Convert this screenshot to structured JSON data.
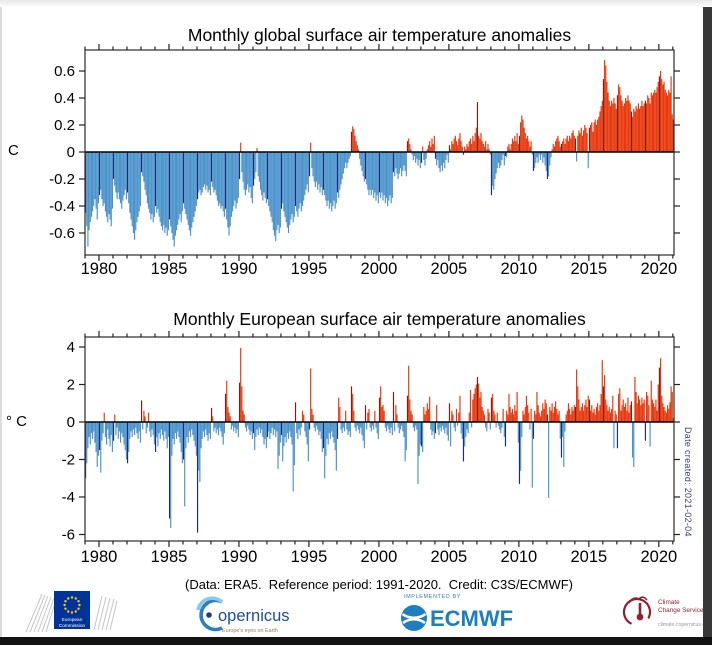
{
  "chart_data": [
    {
      "type": "bar",
      "title": "Monthly global surface air temperature anomalies",
      "ylabel": "C",
      "unit": "degC",
      "frequency": "monthly",
      "x_start_year": 1979,
      "x_end": "2021-01",
      "x_major_ticks": [
        1980,
        1985,
        1990,
        1995,
        2000,
        2005,
        2010,
        2015,
        2020
      ],
      "y_ticks": [
        0.6,
        0.4,
        0.2,
        0,
        -0.2,
        -0.4,
        -0.6
      ],
      "y_tick_labels": [
        "0.6",
        "0.4",
        "0.2",
        "0",
        "-0.2",
        "-0.4",
        "-0.6"
      ],
      "ylim": [
        -0.76,
        0.76
      ],
      "grid": false,
      "highlight_rule": "January values drawn in dark colours",
      "colors": {
        "positive": "#e8380d",
        "positive_january": "#8c1a0e",
        "negative": "#4b94cb",
        "negative_january": "#1b2c7e"
      },
      "values": [
        -0.45,
        -0.55,
        -0.7,
        -0.58,
        -0.52,
        -0.48,
        -0.44,
        -0.4,
        -0.35,
        -0.42,
        -0.5,
        -0.38,
        -0.32,
        -0.28,
        -0.35,
        -0.4,
        -0.38,
        -0.44,
        -0.48,
        -0.52,
        -0.46,
        -0.5,
        -0.55,
        -0.42,
        -0.2,
        -0.25,
        -0.3,
        -0.35,
        -0.3,
        -0.35,
        -0.38,
        -0.42,
        -0.36,
        -0.32,
        -0.28,
        -0.35,
        -0.3,
        -0.38,
        -0.45,
        -0.5,
        -0.55,
        -0.6,
        -0.65,
        -0.58,
        -0.52,
        -0.48,
        -0.44,
        -0.4,
        -0.15,
        -0.18,
        -0.22,
        -0.28,
        -0.32,
        -0.38,
        -0.42,
        -0.45,
        -0.5,
        -0.46,
        -0.52,
        -0.48,
        -0.4,
        -0.45,
        -0.42,
        -0.48,
        -0.52,
        -0.55,
        -0.58,
        -0.54,
        -0.6,
        -0.56,
        -0.62,
        -0.58,
        -0.5,
        -0.55,
        -0.6,
        -0.65,
        -0.7,
        -0.62,
        -0.58,
        -0.54,
        -0.5,
        -0.46,
        -0.52,
        -0.44,
        -0.38,
        -0.42,
        -0.46,
        -0.5,
        -0.54,
        -0.58,
        -0.62,
        -0.56,
        -0.52,
        -0.48,
        -0.44,
        -0.4,
        -0.35,
        -0.3,
        -0.28,
        -0.32,
        -0.3,
        -0.26,
        -0.24,
        -0.28,
        -0.25,
        -0.3,
        -0.28,
        -0.32,
        -0.22,
        -0.26,
        -0.3,
        -0.28,
        -0.32,
        -0.36,
        -0.4,
        -0.38,
        -0.42,
        -0.4,
        -0.44,
        -0.48,
        -0.42,
        -0.5,
        -0.56,
        -0.62,
        -0.55,
        -0.48,
        -0.44,
        -0.4,
        -0.36,
        -0.42,
        -0.38,
        -0.34,
        -0.2,
        0.07,
        -0.15,
        -0.22,
        -0.28,
        -0.32,
        -0.28,
        -0.24,
        -0.3,
        -0.26,
        -0.34,
        -0.38,
        -0.25,
        -0.2,
        -0.15,
        0.03,
        -0.18,
        -0.22,
        -0.28,
        -0.32,
        -0.36,
        -0.3,
        -0.34,
        -0.38,
        -0.35,
        -0.4,
        -0.44,
        -0.48,
        -0.52,
        -0.58,
        -0.62,
        -0.66,
        -0.58,
        -0.54,
        -0.6,
        -0.56,
        -0.42,
        -0.38,
        -0.44,
        -0.48,
        -0.52,
        -0.56,
        -0.6,
        -0.54,
        -0.5,
        -0.46,
        -0.52,
        -0.48,
        -0.4,
        -0.44,
        -0.48,
        -0.42,
        -0.38,
        -0.44,
        -0.4,
        -0.36,
        -0.32,
        -0.28,
        -0.24,
        -0.3,
        -0.18,
        0.07,
        -0.12,
        -0.18,
        -0.22,
        -0.26,
        -0.22,
        -0.28,
        -0.24,
        -0.3,
        -0.26,
        -0.32,
        -0.28,
        -0.32,
        -0.36,
        -0.4,
        -0.36,
        -0.42,
        -0.38,
        -0.44,
        -0.4,
        -0.36,
        -0.42,
        -0.38,
        -0.3,
        -0.34,
        -0.28,
        -0.24,
        -0.2,
        -0.16,
        -0.12,
        -0.08,
        -0.12,
        -0.08,
        -0.05,
        -0.03,
        0.15,
        0.19,
        0.17,
        0.12,
        0.08,
        0.05,
        0.02,
        -0.05,
        -0.1,
        -0.14,
        -0.18,
        -0.22,
        -0.2,
        -0.24,
        -0.28,
        -0.32,
        -0.28,
        -0.32,
        -0.28,
        -0.34,
        -0.3,
        -0.36,
        -0.32,
        -0.38,
        -0.3,
        -0.34,
        -0.3,
        -0.36,
        -0.32,
        -0.38,
        -0.34,
        -0.4,
        -0.36,
        -0.32,
        -0.38,
        -0.34,
        -0.15,
        -0.18,
        -0.12,
        -0.16,
        -0.2,
        -0.16,
        -0.12,
        -0.18,
        -0.14,
        -0.1,
        -0.14,
        -0.18,
        0.08,
        0.1,
        0.06,
        0.02,
        -0.02,
        -0.06,
        -0.03,
        -0.08,
        -0.05,
        -0.1,
        -0.06,
        -0.12,
        -0.08,
        0.04,
        -0.06,
        -0.1,
        -0.05,
        0.02,
        0.05,
        0.08,
        0.04,
        0.1,
        0.06,
        0.12,
        -0.05,
        -0.1,
        -0.06,
        -0.12,
        -0.15,
        -0.1,
        -0.14,
        -0.08,
        -0.12,
        -0.06,
        -0.02,
        -0.08,
        0.05,
        0.02,
        0.08,
        0.06,
        0.1,
        0.12,
        0.08,
        0.05,
        0.1,
        0.14,
        0.08,
        0.04,
        -0.02,
        0.04,
        0.02,
        0.06,
        0.04,
        0.08,
        0.1,
        0.06,
        0.12,
        0.08,
        0.14,
        0.18,
        0.37,
        0.12,
        0.1,
        0.14,
        0.08,
        0.06,
        0.04,
        0.08,
        0.02,
        0.06,
        0.02,
        -0.02,
        -0.32,
        -0.25,
        -0.28,
        -0.2,
        -0.16,
        -0.12,
        -0.08,
        -0.12,
        -0.1,
        -0.06,
        -0.02,
        -0.1,
        -0.03,
        -0.04,
        0.04,
        0.06,
        0.02,
        0.06,
        0.1,
        0.08,
        0.12,
        0.08,
        0.14,
        0.06,
        0.12,
        0.22,
        0.27,
        0.24,
        0.18,
        0.14,
        0.1,
        0.12,
        0.08,
        0.04,
        0.08,
        -0.02,
        -0.14,
        -0.12,
        -0.08,
        -0.04,
        -0.08,
        -0.02,
        -0.06,
        -0.02,
        -0.08,
        -0.04,
        -0.1,
        -0.14,
        -0.2,
        -0.18,
        -0.1,
        -0.04,
        0.02,
        0.06,
        0.04,
        0.08,
        0.1,
        0.12,
        0.08,
        0.04,
        0.06,
        0.08,
        0.1,
        0.06,
        0.1,
        0.12,
        0.08,
        0.12,
        0.1,
        0.14,
        0.16,
        0.12,
        0.1,
        -0.07,
        0.12,
        0.16,
        0.14,
        0.18,
        0.12,
        0.16,
        0.2,
        0.18,
        0.14,
        -0.12,
        0.18,
        0.2,
        0.22,
        0.15,
        0.22,
        0.24,
        0.2,
        0.24,
        0.26,
        0.3,
        0.34,
        0.38,
        0.54,
        0.68,
        0.64,
        0.52,
        0.44,
        0.38,
        0.34,
        0.38,
        0.36,
        0.4,
        0.36,
        0.32,
        0.42,
        0.5,
        0.48,
        0.42,
        0.38,
        0.34,
        0.36,
        0.4,
        0.38,
        0.42,
        0.38,
        0.36,
        0.3,
        0.26,
        0.32,
        0.3,
        0.34,
        0.32,
        0.36,
        0.32,
        0.34,
        0.38,
        0.34,
        0.36,
        0.38,
        0.36,
        0.42,
        0.4,
        0.36,
        0.44,
        0.42,
        0.44,
        0.46,
        0.44,
        0.48,
        0.52,
        0.56,
        0.6,
        0.54,
        0.5,
        0.52,
        0.46,
        0.44,
        0.42,
        0.46,
        0.44,
        0.56,
        0.28,
        0.24
      ]
    },
    {
      "type": "bar",
      "title": "Monthly European surface air temperature anomalies",
      "ylabel": "° C",
      "unit": "degC",
      "frequency": "monthly",
      "x_start_year": 1979,
      "x_end": "2021-01",
      "x_major_ticks": [
        1980,
        1985,
        1990,
        1995,
        2000,
        2005,
        2010,
        2015,
        2020
      ],
      "y_ticks": [
        4,
        2,
        0,
        -2,
        -4,
        -6
      ],
      "y_tick_labels": [
        "4",
        "2",
        "0",
        "-2",
        "-4",
        "-6"
      ],
      "ylim": [
        -6.35,
        4.55
      ],
      "grid": false,
      "highlight_rule": "January values drawn in dark colours",
      "colors": {
        "positive": "#e8380d",
        "positive_january": "#8c1a0e",
        "negative": "#4b94cb",
        "negative_january": "#1b2c7e"
      },
      "values": [
        -3.0,
        -2.2,
        -1.4,
        -0.8,
        -1.2,
        -0.6,
        -0.9,
        -0.5,
        -1.1,
        -1.6,
        -2.4,
        -1.8,
        -1.5,
        -2.7,
        -1.0,
        -0.6,
        0.5,
        -0.8,
        -1.2,
        -0.4,
        -0.9,
        -1.3,
        -0.7,
        -1.6,
        -1.0,
        0.4,
        -0.7,
        -0.3,
        -0.9,
        -0.5,
        -1.1,
        -0.6,
        -0.8,
        -1.2,
        -1.5,
        -2.0,
        -2.2,
        -1.6,
        -0.9,
        -0.5,
        -0.8,
        -0.4,
        -0.7,
        -0.3,
        -0.6,
        -0.9,
        -0.5,
        -1.1,
        1.15,
        -0.4,
        0.6,
        0.3,
        -0.6,
        -0.3,
        0.5,
        -0.5,
        -0.8,
        -0.4,
        -0.7,
        -1.2,
        -1.6,
        -0.8,
        -1.3,
        -0.6,
        -0.9,
        -0.4,
        -0.7,
        -1.0,
        -0.5,
        -0.9,
        -1.4,
        -0.8,
        -5.15,
        -5.65,
        -1.8,
        -0.9,
        -1.2,
        -0.6,
        -0.9,
        -0.5,
        -0.8,
        -1.1,
        -1.6,
        -2.2,
        -2.0,
        -4.5,
        -1.4,
        -0.8,
        -1.1,
        -0.5,
        -0.8,
        -0.4,
        -0.7,
        -1.0,
        -1.3,
        -1.8,
        -5.9,
        -2.6,
        -3.2,
        -1.4,
        -0.9,
        -0.5,
        -0.8,
        -0.4,
        -0.7,
        -1.0,
        -0.6,
        -0.9,
        0.75,
        0.3,
        -0.5,
        -0.3,
        -0.6,
        -0.4,
        -0.7,
        -0.3,
        -0.5,
        -0.8,
        -1.2,
        -0.6,
        1.5,
        2.2,
        0.8,
        0.5,
        0.3,
        -0.4,
        -0.2,
        -0.5,
        -0.3,
        -0.6,
        -0.4,
        -0.8,
        2.1,
        3.95,
        1.9,
        0.6,
        0.4,
        -0.3,
        -0.5,
        -0.2,
        -0.4,
        -0.7,
        -0.5,
        -0.9,
        -0.6,
        -1.5,
        -0.8,
        -0.4,
        -0.7,
        -0.3,
        -0.6,
        -0.4,
        -0.8,
        -1.2,
        -0.9,
        -1.4,
        -0.8,
        -0.5,
        -0.9,
        -0.6,
        -0.3,
        -0.7,
        -0.4,
        -0.8,
        -0.5,
        -2.5,
        -1.8,
        -1.1,
        -0.7,
        -2.1,
        -1.3,
        -0.8,
        -1.1,
        -0.6,
        -0.9,
        -0.5,
        -0.8,
        -1.2,
        -3.7,
        -2.3,
        1.05,
        -0.6,
        -0.9,
        -0.4,
        -0.7,
        -0.3,
        0.6,
        0.4,
        -0.5,
        -0.8,
        -1.2,
        -2.1,
        -0.4,
        2.85,
        0.7,
        0.4,
        -0.3,
        -0.5,
        -0.2,
        -0.4,
        -0.7,
        -0.5,
        -0.9,
        -1.6,
        -1.4,
        -3.0,
        -1.8,
        -0.9,
        -1.2,
        -0.6,
        -0.9,
        -0.5,
        -0.8,
        -1.1,
        -1.5,
        -2.6,
        -0.9,
        1.3,
        0.8,
        -0.4,
        -0.6,
        -0.3,
        -0.5,
        0.6,
        -0.4,
        -0.7,
        -0.5,
        -0.8,
        1.9,
        1.5,
        0.6,
        -0.3,
        -0.5,
        -0.2,
        -0.4,
        -0.6,
        -0.3,
        -0.7,
        -1.0,
        -1.4,
        0.9,
        -0.4,
        0.5,
        0.7,
        -0.3,
        -0.5,
        -0.2,
        -0.4,
        0.6,
        -0.3,
        -0.6,
        -0.9,
        1.3,
        1.9,
        0.8,
        0.9,
        0.6,
        -0.3,
        -0.5,
        -0.2,
        -0.4,
        -0.6,
        -0.3,
        -0.7,
        1.6,
        -0.5,
        0.9,
        0.4,
        -0.3,
        -0.6,
        -0.4,
        -0.2,
        -0.5,
        -0.8,
        -2.1,
        -1.5,
        1.4,
        3.0,
        1.2,
        0.6,
        0.4,
        -0.3,
        -0.5,
        -0.2,
        -0.4,
        -3.3,
        -1.8,
        -1.2,
        -1.3,
        -1.6,
        0.8,
        0.4,
        0.6,
        1.0,
        0.7,
        1.35,
        -0.4,
        -0.7,
        -0.5,
        -0.9,
        -0.6,
        0.9,
        -0.4,
        -0.7,
        -0.3,
        -0.5,
        -0.2,
        -0.4,
        -0.6,
        -0.3,
        -0.7,
        -1.0,
        1.0,
        -1.3,
        0.6,
        0.4,
        -0.3,
        -0.5,
        0.7,
        -0.2,
        0.5,
        1.4,
        -0.6,
        -0.9,
        -2.1,
        -1.3,
        -0.8,
        -0.4,
        -0.6,
        0.5,
        1.7,
        -0.3,
        1.2,
        1.5,
        1.8,
        2.0,
        2.4,
        2.05,
        1.3,
        1.6,
        0.8,
        0.6,
        0.4,
        -0.3,
        -0.5,
        0.7,
        0.5,
        -0.4,
        1.3,
        1.5,
        0.6,
        0.4,
        -0.3,
        0.5,
        -0.2,
        -0.4,
        -0.6,
        -0.3,
        0.7,
        -0.8,
        -1.3,
        0.6,
        0.4,
        1.5,
        0.8,
        0.5,
        0.7,
        0.4,
        0.9,
        0.6,
        1.6,
        -1.1,
        -3.3,
        -2.6,
        -0.8,
        0.6,
        0.4,
        0.8,
        1.4,
        0.9,
        0.5,
        -0.4,
        0.7,
        -3.5,
        -0.9,
        0.6,
        0.4,
        1.6,
        0.9,
        0.5,
        0.3,
        0.6,
        1.0,
        0.7,
        1.2,
        1.0,
        0.4,
        -4.05,
        0.8,
        0.6,
        1.0,
        0.5,
        0.8,
        1.1,
        0.7,
        0.4,
        0.6,
        -0.9,
        -1.9,
        -0.8,
        -2.4,
        -0.5,
        0.4,
        0.6,
        1.0,
        0.7,
        0.4,
        0.8,
        0.6,
        0.9,
        0.8,
        2.8,
        1.9,
        1.2,
        0.6,
        0.8,
        1.0,
        0.6,
        0.9,
        1.2,
        0.8,
        1.4,
        1.2,
        0.6,
        0.9,
        0.5,
        0.7,
        0.4,
        0.8,
        1.0,
        0.6,
        0.9,
        1.5,
        3.3,
        1.9,
        2.5,
        1.2,
        0.9,
        0.6,
        0.8,
        0.5,
        0.7,
        1.4,
        -1.4,
        0.6,
        0.4,
        -1.4,
        1.5,
        1.8,
        0.6,
        0.9,
        1.2,
        0.8,
        1.0,
        0.6,
        1.3,
        0.5,
        0.9,
        1.1,
        -1.9,
        -2.4,
        2.4,
        1.6,
        1.0,
        1.4,
        1.2,
        0.9,
        1.3,
        1.0,
        1.2,
        -1.0,
        1.6,
        1.4,
        0.9,
        -1.3,
        2.2,
        1.2,
        1.0,
        0.8,
        1.2,
        0.6,
        2.0,
        2.9,
        3.4,
        1.4,
        1.0,
        0.8,
        0.6,
        0.5,
        0.9,
        0.7,
        1.05,
        1.9,
        1.6,
        0.2
      ]
    }
  ],
  "footer": {
    "caption": "(Data: ERA5.  Reference period: 1991-2020.  Credit: C3S/ECMWF)"
  },
  "annotations": {
    "date_created": "Date created: 2021-02-04"
  },
  "logos": {
    "european_commission": {
      "line1": "European",
      "line2": "Commission"
    },
    "copernicus": {
      "name": "opernicus",
      "tagline": "Europe's eyes on Earth"
    },
    "ecmwf": {
      "implemented_by": "IMPLEMENTED BY",
      "name": "ECMWF"
    },
    "c3s": {
      "line1": "Climate",
      "line2": "Change Service",
      "url": "climate.copernicus.eu"
    }
  }
}
